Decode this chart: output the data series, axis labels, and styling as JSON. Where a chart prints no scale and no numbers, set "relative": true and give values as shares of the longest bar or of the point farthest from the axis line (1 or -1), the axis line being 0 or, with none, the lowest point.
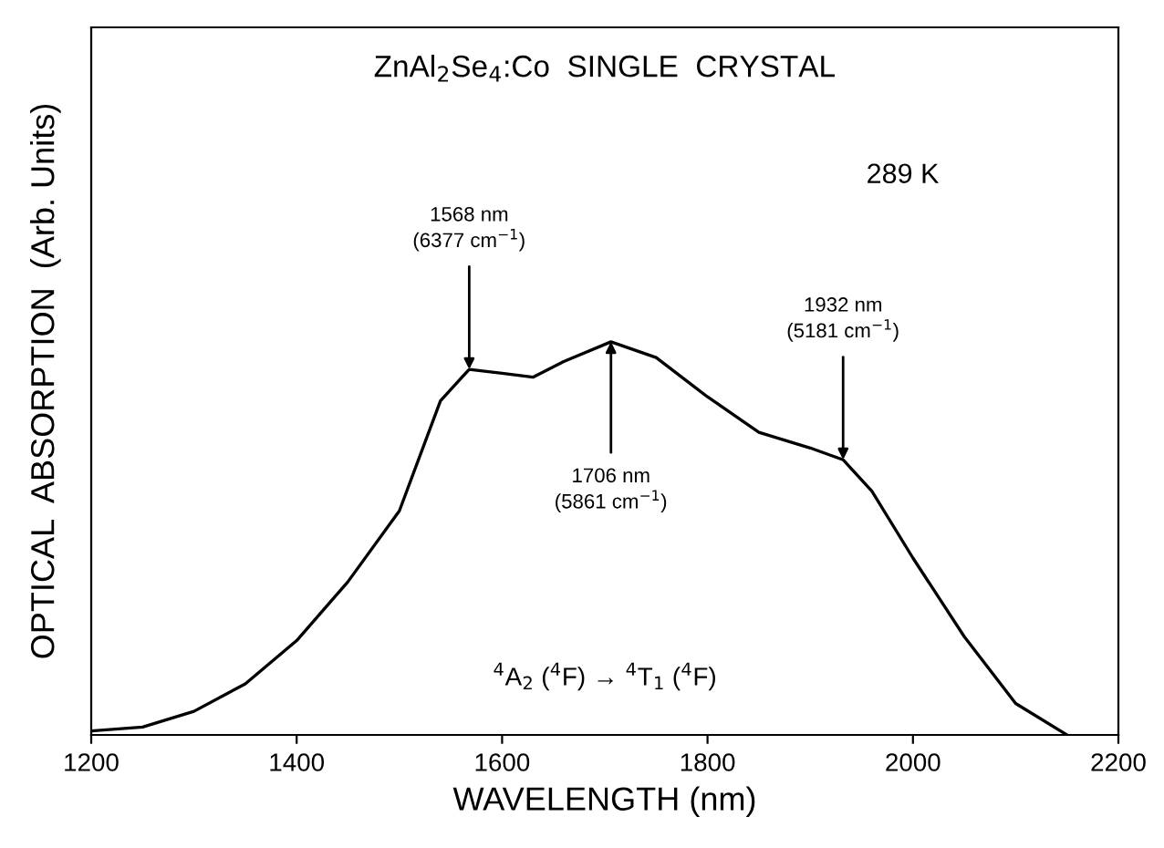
{
  "chart_data": {
    "type": "line",
    "title": "ZnAl$_{2}$Se$_{4}$:Co  SINGLE  CRYSTAL",
    "xlabel": "WAVELENGTH (nm)",
    "ylabel": "OPTICAL  ABSORPTION  (Arb. Units)",
    "relative": true,
    "x": [
      1200,
      1250,
      1300,
      1350,
      1400,
      1450,
      1500,
      1540,
      1568,
      1600,
      1630,
      1660,
      1706,
      1750,
      1800,
      1850,
      1900,
      1932,
      1960,
      2000,
      2050,
      2100,
      2150
    ],
    "series": [
      {
        "color": "#000000",
        "values": [
          0.01,
          0.02,
          0.06,
          0.13,
          0.24,
          0.39,
          0.57,
          0.85,
          0.93,
          0.92,
          0.91,
          0.95,
          1.0,
          0.96,
          0.86,
          0.77,
          0.73,
          0.7,
          0.62,
          0.45,
          0.25,
          0.08,
          0.0
        ]
      }
    ],
    "xlim": [
      1200,
      2200
    ],
    "xticks": [
      1200,
      1400,
      1600,
      1800,
      2000,
      2200
    ],
    "grid": false,
    "legend": false,
    "marker": "none",
    "line_style": "solid",
    "annotations": [
      "289 K",
      "$^{4}$A$_{2}$ ($^{4}$F) → $^{4}$T$_{1}$ ($^{4}$F)",
      {
        "text": "1568 nm\n(6377 cm$^{−1}$)",
        "x": 1568,
        "y": 0.93
      },
      {
        "text": "1706 nm\n(5861 cm$^{−1}$)",
        "x": 1706,
        "y": 1.0
      },
      {
        "text": "1932 nm\n(5181 cm$^{−1}$)",
        "x": 1932,
        "y": 0.7
      }
    ]
  }
}
